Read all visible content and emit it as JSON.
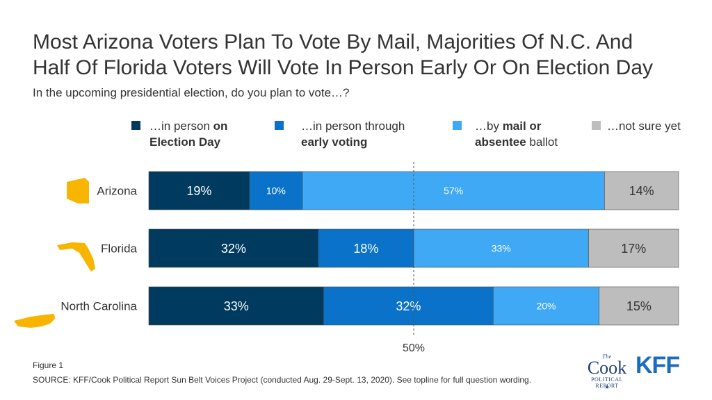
{
  "title_line1": "Most Arizona Voters Plan To Vote By Mail, Majorities Of N.C. And",
  "title_line2": "Half Of Florida Voters Will Vote In Person Early Or On Election Day",
  "subtitle": "In the upcoming presidential election, do you plan to vote…?",
  "legend": [
    {
      "line1_pre": "…in person ",
      "line1_bold": "on",
      "line2_bold": "Election Day",
      "line2_post": "",
      "color": "#003a5f"
    },
    {
      "line1_pre": "…in person through",
      "line1_bold": "",
      "line2_bold": "early voting",
      "line2_post": "",
      "color": "#0a72c8"
    },
    {
      "line1_pre": "…by ",
      "line1_bold": "mail or",
      "line2_bold": "absentee",
      "line2_post": " ballot",
      "color": "#3fa9f5"
    },
    {
      "line1_pre": "…not sure yet",
      "line1_bold": "",
      "line2_bold": "",
      "line2_post": "",
      "color": "#bdbdbd"
    }
  ],
  "chart_data": {
    "type": "bar",
    "orientation": "horizontal",
    "stacked": true,
    "categories": [
      "Arizona",
      "Florida",
      "North Carolina"
    ],
    "series": [
      {
        "name": "…in person on Election Day",
        "values": [
          19,
          32,
          33
        ],
        "labels": [
          "19%",
          "32%",
          "33%"
        ],
        "color": "#003a5f",
        "label_color": "#ffffff"
      },
      {
        "name": "…in person through early voting",
        "values": [
          10,
          18,
          32
        ],
        "labels": [
          "10%",
          "18%",
          "32%"
        ],
        "color": "#0a72c8",
        "label_color": "#ffffff"
      },
      {
        "name": "…by mail or absentee ballot",
        "values": [
          57,
          33,
          20
        ],
        "labels": [
          "57%",
          "33%",
          "20%"
        ],
        "color": "#3fa9f5",
        "label_color": "#ffffff"
      },
      {
        "name": "…not sure yet",
        "values": [
          14,
          17,
          15
        ],
        "labels": [
          "14%",
          "17%",
          "15%"
        ],
        "color": "#bdbdbd",
        "label_color": "#333333"
      }
    ],
    "xlim": [
      0,
      100
    ],
    "reference_line": {
      "value": 50,
      "label": "50%"
    },
    "state_icon_color": "#f7b500"
  },
  "footer": {
    "figure": "Figure 1",
    "source": "SOURCE: KFF/Cook Political Report Sun Belt Voices Project (conducted Aug. 29-Sept. 13, 2020). See topline for full question wording."
  },
  "logos": {
    "cook_the": "The",
    "cook_main": "Cook",
    "cook_sub1": "POLITICAL",
    "cook_sub2": "REPORT",
    "kff": "KFF"
  }
}
